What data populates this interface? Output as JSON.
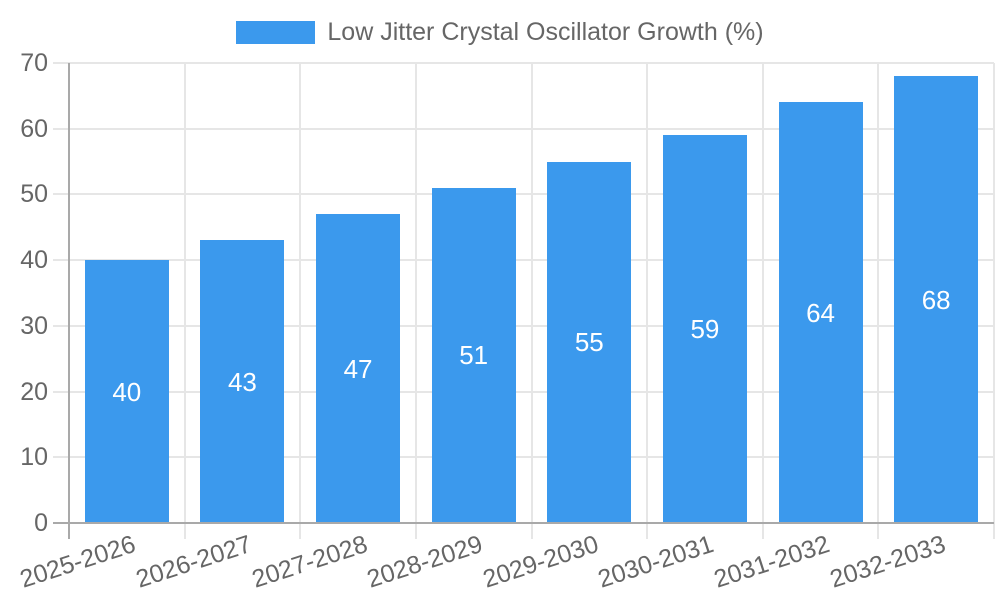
{
  "chart_data": {
    "type": "bar",
    "title": "Low Jitter Crystal Oscillator Growth (%)",
    "legend": {
      "position": "top",
      "label": "Low Jitter Crystal Oscillator Growth (%)"
    },
    "categories": [
      "2025-2026",
      "2026-2027",
      "2027-2028",
      "2028-2029",
      "2029-2030",
      "2030-2031",
      "2031-2032",
      "2032-2033"
    ],
    "values": [
      40,
      43,
      47,
      51,
      55,
      59,
      64,
      68
    ],
    "yticks": [
      0,
      10,
      20,
      30,
      40,
      50,
      60,
      70
    ],
    "ylim": [
      0,
      70
    ],
    "xlabel": "",
    "ylabel": "",
    "grid": true,
    "x_label_rotation_deg": -18,
    "colors": {
      "bar": "#3B99ED",
      "grid": "#E6E6E6",
      "axis": "#A9A9A9",
      "tick_text": "#666666",
      "legend_text": "#666666",
      "value_label": "#FFFFFF",
      "background": "#FFFFFF"
    }
  }
}
